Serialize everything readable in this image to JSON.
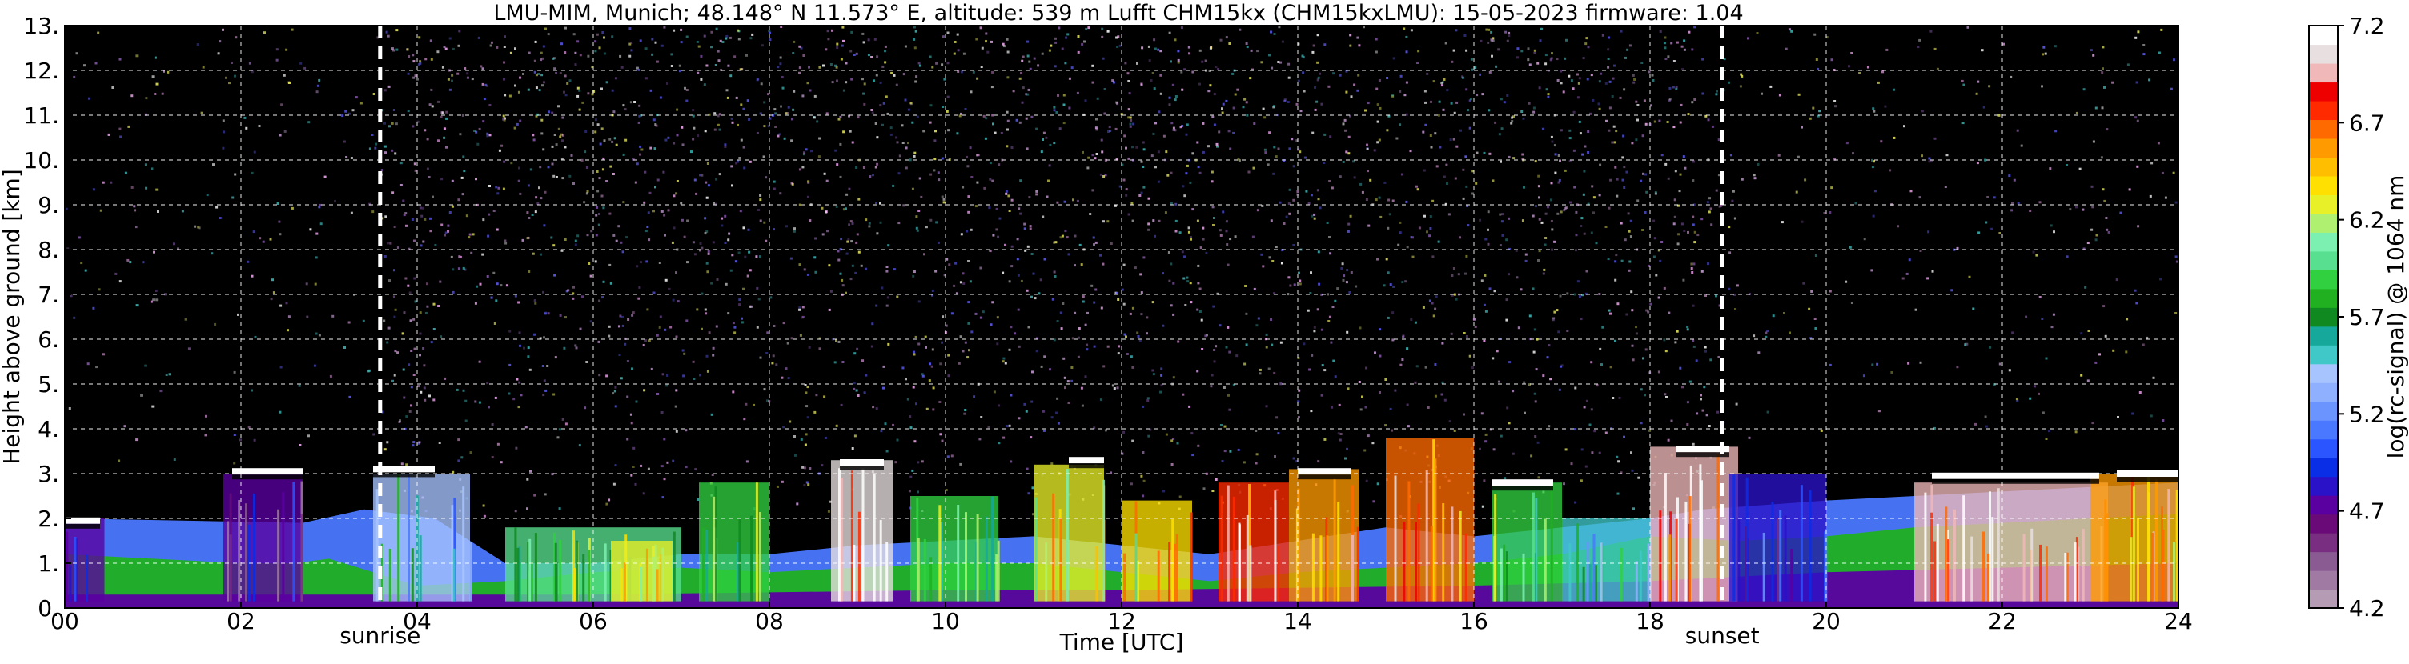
{
  "chart_data": [
    {
      "type": "heatmap",
      "title": "LMU-MIM, Munich; 48.148° N 11.573° E, altitude: 539 m    Lufft CHM15kx (CHM15kxLMU): 15-05-2023    firmware: 1.04",
      "xlabel": "Time [UTC]",
      "ylabel": "Height above ground [km]",
      "xlim": [
        0,
        24
      ],
      "ylim": [
        0,
        13
      ],
      "x_ticks": [
        "00",
        "02",
        "04",
        "06",
        "08",
        "10",
        "12",
        "14",
        "16",
        "18",
        "20",
        "22",
        "24"
      ],
      "x_tick_values": [
        0,
        2,
        4,
        6,
        8,
        10,
        12,
        14,
        16,
        18,
        20,
        22,
        24
      ],
      "y_ticks": [
        "0.",
        "1.",
        "2.",
        "3.",
        "4.",
        "5.",
        "6.",
        "7.",
        "8.",
        "9.",
        "10.",
        "11.",
        "12.",
        "13."
      ],
      "y_tick_values": [
        0,
        1,
        2,
        3,
        4,
        5,
        6,
        7,
        8,
        9,
        10,
        11,
        12,
        13
      ],
      "grid": true,
      "annotations": [
        {
          "label": "sunrise",
          "x": 3.58
        },
        {
          "label": "sunset",
          "x": 18.82
        }
      ],
      "colorbar": {
        "label": "log(rc-signal) @ 1064 nm",
        "range": [
          4.2,
          7.2
        ],
        "ticks": [
          "4.2",
          "4.7",
          "5.2",
          "5.7",
          "6.2",
          "6.7",
          "7.2"
        ],
        "tick_values": [
          4.2,
          4.7,
          5.2,
          5.7,
          6.2,
          6.7,
          7.2
        ],
        "colors": [
          "#b69bb5",
          "#a07aa3",
          "#8a5a92",
          "#7a2e82",
          "#6a0a78",
          "#5a00a0",
          "#2a12c8",
          "#0a2de6",
          "#2a55ff",
          "#4a78ff",
          "#6c94ff",
          "#8fb0ff",
          "#a8c4ff",
          "#40c8c8",
          "#16a89a",
          "#108a20",
          "#20b020",
          "#30d040",
          "#58e090",
          "#7cf0b0",
          "#b0f070",
          "#e8f028",
          "#ffe000",
          "#ffbf00",
          "#ff9a00",
          "#ff6a00",
          "#ff2a00",
          "#ee0000",
          "#f0b8b8",
          "#e8e0e0",
          "#ffffff"
        ]
      },
      "layers": [
        {
          "x": [
            0,
            2.7,
            3.4,
            4.2,
            5,
            6,
            7,
            8,
            9,
            10,
            11,
            12,
            13,
            14,
            15,
            16,
            17,
            18,
            18.6,
            20,
            22,
            24
          ],
          "y": [
            2.0,
            1.9,
            2.2,
            2.0,
            1.0,
            1.0,
            1.2,
            1.2,
            1.4,
            1.5,
            1.6,
            1.4,
            1.2,
            1.5,
            1.8,
            1.6,
            1.8,
            2.0,
            2.2,
            2.4,
            2.6,
            2.8
          ],
          "level": 5.1
        },
        {
          "x": [
            0,
            1,
            2,
            2.6,
            3,
            4,
            5,
            6,
            7,
            8,
            9,
            10,
            11,
            12,
            13,
            14,
            15,
            16,
            17,
            18,
            19,
            20,
            21,
            22,
            23,
            24
          ],
          "y": [
            1.2,
            1.1,
            1.0,
            1.0,
            1.1,
            0.5,
            0.6,
            0.8,
            0.9,
            0.8,
            0.9,
            1.0,
            1.0,
            0.8,
            0.6,
            0.8,
            0.9,
            1.0,
            1.2,
            1.6,
            1.5,
            1.6,
            1.8,
            1.9,
            2.0,
            2.1
          ],
          "level": 5.75
        },
        {
          "x": [
            0,
            2,
            4,
            6,
            8,
            10,
            12,
            14,
            16,
            18,
            20,
            22,
            24
          ],
          "y": [
            0.3,
            0.3,
            0.3,
            0.3,
            0.35,
            0.4,
            0.4,
            0.45,
            0.5,
            0.6,
            0.8,
            0.9,
            1.0
          ],
          "level": 4.75
        }
      ],
      "features": [
        {
          "x0": 0,
          "x1": 0.45,
          "top": 2.0,
          "level": 4.75
        },
        {
          "x0": 1.8,
          "x1": 2.7,
          "top": 3.0,
          "level": 4.75
        },
        {
          "x0": 3.5,
          "x1": 4.6,
          "top": 3.0,
          "level": 5.45
        },
        {
          "x0": 5.0,
          "x1": 7.0,
          "top": 1.8,
          "level": 6.0
        },
        {
          "x0": 6.2,
          "x1": 6.9,
          "top": 1.5,
          "level": 6.25
        },
        {
          "x0": 7.2,
          "x1": 8.0,
          "top": 2.8,
          "level": 5.9
        },
        {
          "x0": 8.7,
          "x1": 9.4,
          "top": 3.3,
          "level": 7.1
        },
        {
          "x0": 9.6,
          "x1": 10.6,
          "top": 2.5,
          "level": 5.9
        },
        {
          "x0": 11.0,
          "x1": 11.8,
          "top": 3.2,
          "level": 6.3
        },
        {
          "x0": 12.0,
          "x1": 12.8,
          "top": 2.4,
          "level": 6.4
        },
        {
          "x0": 13.1,
          "x1": 13.9,
          "top": 2.8,
          "level": 6.8
        },
        {
          "x0": 13.9,
          "x1": 14.7,
          "top": 3.1,
          "level": 6.6
        },
        {
          "x0": 15.0,
          "x1": 16.0,
          "top": 3.8,
          "level": 6.7
        },
        {
          "x0": 16.2,
          "x1": 17.0,
          "top": 2.8,
          "level": 5.9
        },
        {
          "x0": 17.0,
          "x1": 18.0,
          "top": 2.0,
          "level": 5.5
        },
        {
          "x0": 18.0,
          "x1": 19.0,
          "top": 3.6,
          "level": 6.95
        },
        {
          "x0": 18.9,
          "x1": 20.0,
          "top": 3.0,
          "level": 4.85
        },
        {
          "x0": 21.0,
          "x1": 23.2,
          "top": 2.8,
          "level": 7.0
        },
        {
          "x0": 23.0,
          "x1": 24.0,
          "top": 3.0,
          "level": 6.6
        }
      ],
      "cloud_tops": [
        {
          "x0": 0.0,
          "x1": 0.4,
          "y": 1.95
        },
        {
          "x0": 1.9,
          "x1": 2.7,
          "y": 3.05
        },
        {
          "x0": 3.5,
          "x1": 4.2,
          "y": 3.1
        },
        {
          "x0": 8.8,
          "x1": 9.3,
          "y": 3.25
        },
        {
          "x0": 11.4,
          "x1": 11.8,
          "y": 3.3
        },
        {
          "x0": 14.0,
          "x1": 14.6,
          "y": 3.05
        },
        {
          "x0": 16.2,
          "x1": 16.9,
          "y": 2.8
        },
        {
          "x0": 18.3,
          "x1": 18.9,
          "y": 3.55
        },
        {
          "x0": 21.2,
          "x1": 23.1,
          "y": 2.95
        },
        {
          "x0": 23.3,
          "x1": 24.0,
          "y": 3.0
        }
      ],
      "noise": [
        {
          "x0": 0,
          "x1": 3.58,
          "y0": 3,
          "y1": 13,
          "intensity": 0.25
        },
        {
          "x0": 3.58,
          "x1": 18.82,
          "y0": 2,
          "y1": 13,
          "intensity": 0.85
        },
        {
          "x0": 18.82,
          "x1": 24,
          "y0": 3.5,
          "y1": 13,
          "intensity": 0.25
        }
      ]
    }
  ]
}
